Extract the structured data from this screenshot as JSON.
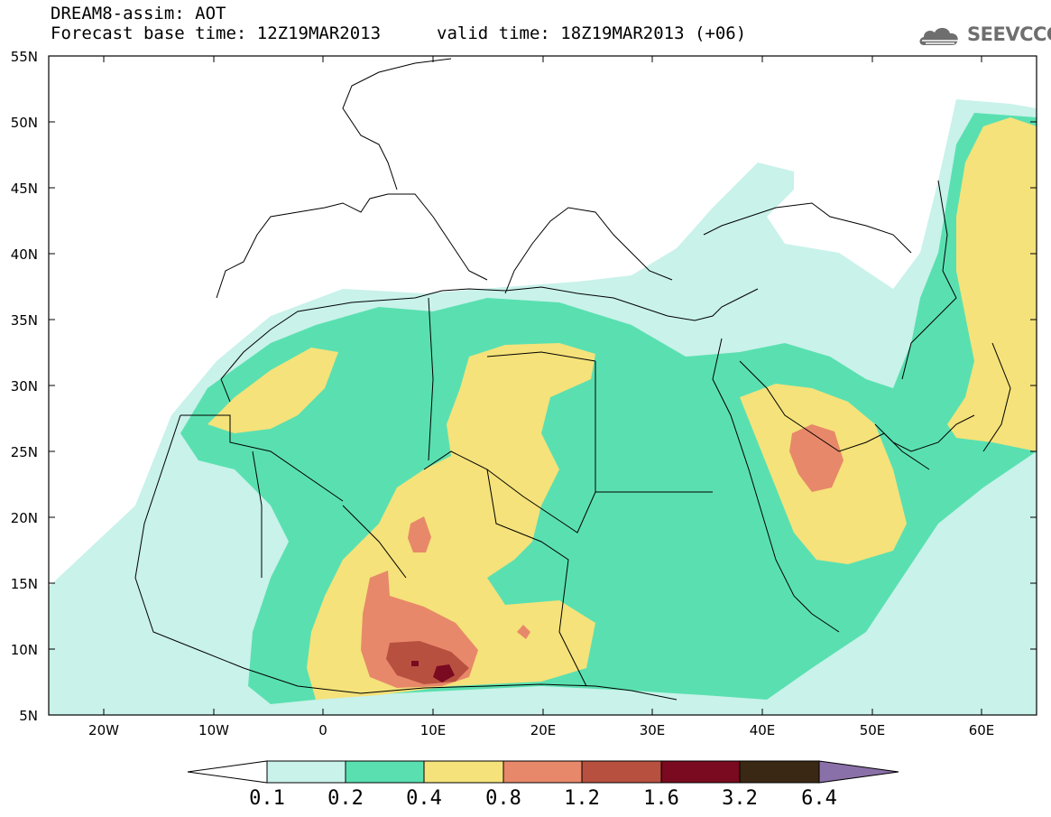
{
  "header": {
    "title": "DREAM8-assim: AOT",
    "base_time": "Forecast base time: 12Z19MAR2013",
    "valid_time": "valid time: 18Z19MAR2013 (+06)"
  },
  "logo": {
    "icon": "cloud-logo-icon",
    "text": "SEEVCCC",
    "color": "#6e6e6e"
  },
  "axes": {
    "lat_labels": [
      "55N",
      "50N",
      "45N",
      "40N",
      "35N",
      "30N",
      "25N",
      "20N",
      "15N",
      "10N",
      "5N"
    ],
    "lon_labels": [
      "20W",
      "10W",
      "0",
      "10E",
      "20E",
      "30E",
      "40E",
      "50E",
      "60E"
    ],
    "lat_range": [
      5,
      55
    ],
    "lon_range": [
      -25,
      65
    ]
  },
  "colorbar": {
    "labels": [
      "0.1",
      "0.2",
      "0.4",
      "0.8",
      "1.2",
      "1.6",
      "3.2",
      "6.4"
    ],
    "colors": [
      "#c8f2ea",
      "#5ae0b0",
      "#f5e27a",
      "#e8886a",
      "#b85040",
      "#7a0a20",
      "#3a2814",
      "#8a70a8"
    ]
  },
  "map": {
    "variable": "AOT",
    "land_outline_color": "#000000",
    "background": "#ffffff"
  }
}
